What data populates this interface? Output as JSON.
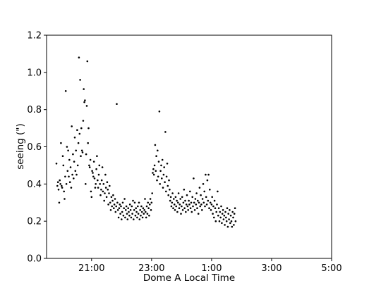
{
  "chart_data": {
    "type": "scatter",
    "title": "",
    "xlabel": "Dome A Local Time",
    "ylabel": "seeing (\")",
    "x_unit": "hours after 19:00 local time",
    "xlim": [
      0.5,
      10.0
    ],
    "ylim": [
      0.0,
      1.2
    ],
    "x_ticks": [
      {
        "value": 2.0,
        "label": "21:00"
      },
      {
        "value": 4.0,
        "label": "23:00"
      },
      {
        "value": 6.0,
        "label": "1:00"
      },
      {
        "value": 8.0,
        "label": "3:00"
      },
      {
        "value": 10.0,
        "label": "5:00"
      }
    ],
    "y_ticks": [
      {
        "value": 0.0,
        "label": "0.0"
      },
      {
        "value": 0.2,
        "label": "0.2"
      },
      {
        "value": 0.4,
        "label": "0.4"
      },
      {
        "value": 0.6,
        "label": "0.6"
      },
      {
        "value": 0.8,
        "label": "0.8"
      },
      {
        "value": 1.0,
        "label": "1.0"
      },
      {
        "value": 1.2,
        "label": "1.2"
      }
    ],
    "grid": false,
    "legend": "none",
    "marker_color": "#000000",
    "points": [
      [
        0.83,
        0.51
      ],
      [
        0.86,
        0.39
      ],
      [
        0.88,
        0.41
      ],
      [
        0.9,
        0.37
      ],
      [
        0.92,
        0.3
      ],
      [
        0.94,
        0.42
      ],
      [
        0.96,
        0.4
      ],
      [
        0.98,
        0.62
      ],
      [
        1.0,
        0.39
      ],
      [
        1.02,
        0.38
      ],
      [
        1.04,
        0.55
      ],
      [
        1.06,
        0.5
      ],
      [
        1.08,
        0.36
      ],
      [
        1.1,
        0.32
      ],
      [
        1.12,
        0.44
      ],
      [
        1.14,
        0.9
      ],
      [
        1.16,
        0.4
      ],
      [
        1.18,
        0.6
      ],
      [
        1.2,
        0.47
      ],
      [
        1.22,
        0.58
      ],
      [
        1.24,
        0.44
      ],
      [
        1.26,
        0.53
      ],
      [
        1.28,
        0.41
      ],
      [
        1.3,
        0.49
      ],
      [
        1.32,
        0.38
      ],
      [
        1.34,
        0.71
      ],
      [
        1.36,
        0.45
      ],
      [
        1.38,
        0.56
      ],
      [
        1.4,
        0.43
      ],
      [
        1.42,
        0.52
      ],
      [
        1.44,
        0.65
      ],
      [
        1.46,
        0.47
      ],
      [
        1.48,
        0.58
      ],
      [
        1.5,
        0.45
      ],
      [
        1.52,
        0.69
      ],
      [
        1.54,
        0.5
      ],
      [
        1.56,
        0.62
      ],
      [
        1.58,
        1.08
      ],
      [
        1.6,
        0.67
      ],
      [
        1.62,
        0.96
      ],
      [
        1.64,
        0.55
      ],
      [
        1.66,
        0.7
      ],
      [
        1.68,
        0.58
      ],
      [
        1.7,
        0.57
      ],
      [
        1.72,
        0.74
      ],
      [
        1.74,
        0.91
      ],
      [
        1.76,
        0.84
      ],
      [
        1.78,
        0.85
      ],
      [
        1.8,
        0.4
      ],
      [
        1.82,
        0.56
      ],
      [
        1.84,
        0.82
      ],
      [
        1.86,
        1.06
      ],
      [
        1.88,
        0.62
      ],
      [
        1.9,
        0.7
      ],
      [
        1.92,
        0.5
      ],
      [
        1.94,
        0.49
      ],
      [
        1.96,
        0.53
      ],
      [
        1.98,
        0.36
      ],
      [
        2.0,
        0.33
      ],
      [
        2.02,
        0.47
      ],
      [
        2.04,
        0.46
      ],
      [
        2.06,
        0.44
      ],
      [
        2.08,
        0.52
      ],
      [
        2.1,
        0.43
      ],
      [
        2.12,
        0.38
      ],
      [
        2.14,
        0.4
      ],
      [
        2.16,
        0.48
      ],
      [
        2.18,
        0.55
      ],
      [
        2.2,
        0.42
      ],
      [
        2.22,
        0.38
      ],
      [
        2.24,
        0.45
      ],
      [
        2.26,
        0.5
      ],
      [
        2.28,
        0.4
      ],
      [
        2.3,
        0.34
      ],
      [
        2.32,
        0.37
      ],
      [
        2.34,
        0.42
      ],
      [
        2.36,
        0.49
      ],
      [
        2.38,
        0.36
      ],
      [
        2.4,
        0.4
      ],
      [
        2.42,
        0.31
      ],
      [
        2.44,
        0.35
      ],
      [
        2.46,
        0.45
      ],
      [
        2.48,
        0.38
      ],
      [
        2.5,
        0.33
      ],
      [
        2.52,
        0.41
      ],
      [
        2.54,
        0.37
      ],
      [
        2.56,
        0.29
      ],
      [
        2.58,
        0.35
      ],
      [
        2.6,
        0.39
      ],
      [
        2.62,
        0.3
      ],
      [
        2.64,
        0.26
      ],
      [
        2.66,
        0.33
      ],
      [
        2.68,
        0.28
      ],
      [
        2.7,
        0.31
      ],
      [
        2.72,
        0.34
      ],
      [
        2.74,
        0.27
      ],
      [
        2.76,
        0.29
      ],
      [
        2.78,
        0.32
      ],
      [
        2.8,
        0.25
      ],
      [
        2.82,
        0.28
      ],
      [
        2.84,
        0.83
      ],
      [
        2.86,
        0.3
      ],
      [
        2.88,
        0.26
      ],
      [
        2.9,
        0.22
      ],
      [
        2.92,
        0.27
      ],
      [
        2.94,
        0.29
      ],
      [
        2.96,
        0.24
      ],
      [
        2.98,
        0.28
      ],
      [
        3.0,
        0.21
      ],
      [
        3.02,
        0.25
      ],
      [
        3.04,
        0.3
      ],
      [
        3.06,
        0.23
      ],
      [
        3.08,
        0.27
      ],
      [
        3.1,
        0.32
      ],
      [
        3.12,
        0.22
      ],
      [
        3.14,
        0.26
      ],
      [
        3.16,
        0.28
      ],
      [
        3.18,
        0.24
      ],
      [
        3.2,
        0.21
      ],
      [
        3.22,
        0.27
      ],
      [
        3.24,
        0.25
      ],
      [
        3.26,
        0.23
      ],
      [
        3.28,
        0.29
      ],
      [
        3.3,
        0.26
      ],
      [
        3.32,
        0.22
      ],
      [
        3.34,
        0.28
      ],
      [
        3.36,
        0.24
      ],
      [
        3.38,
        0.31
      ],
      [
        3.4,
        0.21
      ],
      [
        3.42,
        0.26
      ],
      [
        3.44,
        0.3
      ],
      [
        3.46,
        0.23
      ],
      [
        3.48,
        0.27
      ],
      [
        3.5,
        0.25
      ],
      [
        3.52,
        0.22
      ],
      [
        3.54,
        0.28
      ],
      [
        3.56,
        0.24
      ],
      [
        3.58,
        0.3
      ],
      [
        3.6,
        0.21
      ],
      [
        3.62,
        0.26
      ],
      [
        3.64,
        0.23
      ],
      [
        3.66,
        0.28
      ],
      [
        3.68,
        0.25
      ],
      [
        3.7,
        0.22
      ],
      [
        3.72,
        0.27
      ],
      [
        3.74,
        0.24
      ],
      [
        3.76,
        0.26
      ],
      [
        3.78,
        0.32
      ],
      [
        3.8,
        0.25
      ],
      [
        3.82,
        0.22
      ],
      [
        3.84,
        0.28
      ],
      [
        3.86,
        0.24
      ],
      [
        3.88,
        0.3
      ],
      [
        3.9,
        0.27
      ],
      [
        3.92,
        0.23
      ],
      [
        3.94,
        0.29
      ],
      [
        3.96,
        0.32
      ],
      [
        3.98,
        0.26
      ],
      [
        4.0,
        0.3
      ],
      [
        4.02,
        0.35
      ],
      [
        4.04,
        0.46
      ],
      [
        4.06,
        0.48
      ],
      [
        4.08,
        0.45
      ],
      [
        4.1,
        0.5
      ],
      [
        4.12,
        0.61
      ],
      [
        4.14,
        0.47
      ],
      [
        4.16,
        0.55
      ],
      [
        4.18,
        0.42
      ],
      [
        4.2,
        0.58
      ],
      [
        4.22,
        0.44
      ],
      [
        4.24,
        0.52
      ],
      [
        4.26,
        0.79
      ],
      [
        4.28,
        0.4
      ],
      [
        4.3,
        0.47
      ],
      [
        4.32,
        0.5
      ],
      [
        4.34,
        0.43
      ],
      [
        4.36,
        0.53
      ],
      [
        4.38,
        0.38
      ],
      [
        4.4,
        0.45
      ],
      [
        4.42,
        0.49
      ],
      [
        4.44,
        0.41
      ],
      [
        4.46,
        0.68
      ],
      [
        4.48,
        0.36
      ],
      [
        4.5,
        0.44
      ],
      [
        4.52,
        0.51
      ],
      [
        4.54,
        0.39
      ],
      [
        4.56,
        0.34
      ],
      [
        4.58,
        0.42
      ],
      [
        4.6,
        0.37
      ],
      [
        4.62,
        0.31
      ],
      [
        4.64,
        0.33
      ],
      [
        4.66,
        0.28
      ],
      [
        4.68,
        0.3
      ],
      [
        4.7,
        0.35
      ],
      [
        4.72,
        0.27
      ],
      [
        4.74,
        0.32
      ],
      [
        4.76,
        0.29
      ],
      [
        4.78,
        0.26
      ],
      [
        4.8,
        0.33
      ],
      [
        4.82,
        0.28
      ],
      [
        4.84,
        0.31
      ],
      [
        4.86,
        0.25
      ],
      [
        4.88,
        0.3
      ],
      [
        4.9,
        0.35
      ],
      [
        4.92,
        0.27
      ],
      [
        4.94,
        0.29
      ],
      [
        4.96,
        0.32
      ],
      [
        4.98,
        0.24
      ],
      [
        5.0,
        0.28
      ],
      [
        5.02,
        0.33
      ],
      [
        5.04,
        0.26
      ],
      [
        5.06,
        0.3
      ],
      [
        5.08,
        0.37
      ],
      [
        5.1,
        0.27
      ],
      [
        5.12,
        0.31
      ],
      [
        5.14,
        0.25
      ],
      [
        5.16,
        0.29
      ],
      [
        5.18,
        0.34
      ],
      [
        5.2,
        0.28
      ],
      [
        5.22,
        0.26
      ],
      [
        5.24,
        0.31
      ],
      [
        5.26,
        0.29
      ],
      [
        5.28,
        0.36
      ],
      [
        5.3,
        0.27
      ],
      [
        5.32,
        0.3
      ],
      [
        5.34,
        0.25
      ],
      [
        5.36,
        0.33
      ],
      [
        5.38,
        0.28
      ],
      [
        5.4,
        0.43
      ],
      [
        5.42,
        0.3
      ],
      [
        5.44,
        0.26
      ],
      [
        5.46,
        0.32
      ],
      [
        5.48,
        0.29
      ],
      [
        5.5,
        0.35
      ],
      [
        5.52,
        0.27
      ],
      [
        5.54,
        0.31
      ],
      [
        5.56,
        0.24
      ],
      [
        5.58,
        0.3
      ],
      [
        5.6,
        0.38
      ],
      [
        5.62,
        0.28
      ],
      [
        5.64,
        0.34
      ],
      [
        5.66,
        0.29
      ],
      [
        5.68,
        0.26
      ],
      [
        5.7,
        0.32
      ],
      [
        5.72,
        0.4
      ],
      [
        5.74,
        0.3
      ],
      [
        5.76,
        0.36
      ],
      [
        5.78,
        0.28
      ],
      [
        5.8,
        0.45
      ],
      [
        5.82,
        0.33
      ],
      [
        5.84,
        0.29
      ],
      [
        5.86,
        0.42
      ],
      [
        5.88,
        0.31
      ],
      [
        5.9,
        0.45
      ],
      [
        5.92,
        0.27
      ],
      [
        5.94,
        0.37
      ],
      [
        5.96,
        0.3
      ],
      [
        5.98,
        0.26
      ],
      [
        6.0,
        0.29
      ],
      [
        6.02,
        0.33
      ],
      [
        6.04,
        0.24
      ],
      [
        6.06,
        0.28
      ],
      [
        6.08,
        0.22
      ],
      [
        6.1,
        0.31
      ],
      [
        6.12,
        0.27
      ],
      [
        6.14,
        0.2
      ],
      [
        6.16,
        0.25
      ],
      [
        6.18,
        0.29
      ],
      [
        6.2,
        0.36
      ],
      [
        6.22,
        0.23
      ],
      [
        6.24,
        0.27
      ],
      [
        6.26,
        0.2
      ],
      [
        6.28,
        0.25
      ],
      [
        6.3,
        0.22
      ],
      [
        6.32,
        0.28
      ],
      [
        6.34,
        0.19
      ],
      [
        6.36,
        0.24
      ],
      [
        6.38,
        0.26
      ],
      [
        6.4,
        0.21
      ],
      [
        6.42,
        0.23
      ],
      [
        6.44,
        0.18
      ],
      [
        6.46,
        0.25
      ],
      [
        6.48,
        0.22
      ],
      [
        6.5,
        0.2
      ],
      [
        6.52,
        0.27
      ],
      [
        6.54,
        0.17
      ],
      [
        6.56,
        0.24
      ],
      [
        6.58,
        0.21
      ],
      [
        6.6,
        0.26
      ],
      [
        6.62,
        0.19
      ],
      [
        6.64,
        0.23
      ],
      [
        6.66,
        0.2
      ],
      [
        6.68,
        0.17
      ],
      [
        6.7,
        0.25
      ],
      [
        6.72,
        0.22
      ],
      [
        6.74,
        0.18
      ],
      [
        6.76,
        0.24
      ],
      [
        6.78,
        0.27
      ],
      [
        6.8,
        0.2
      ]
    ]
  }
}
